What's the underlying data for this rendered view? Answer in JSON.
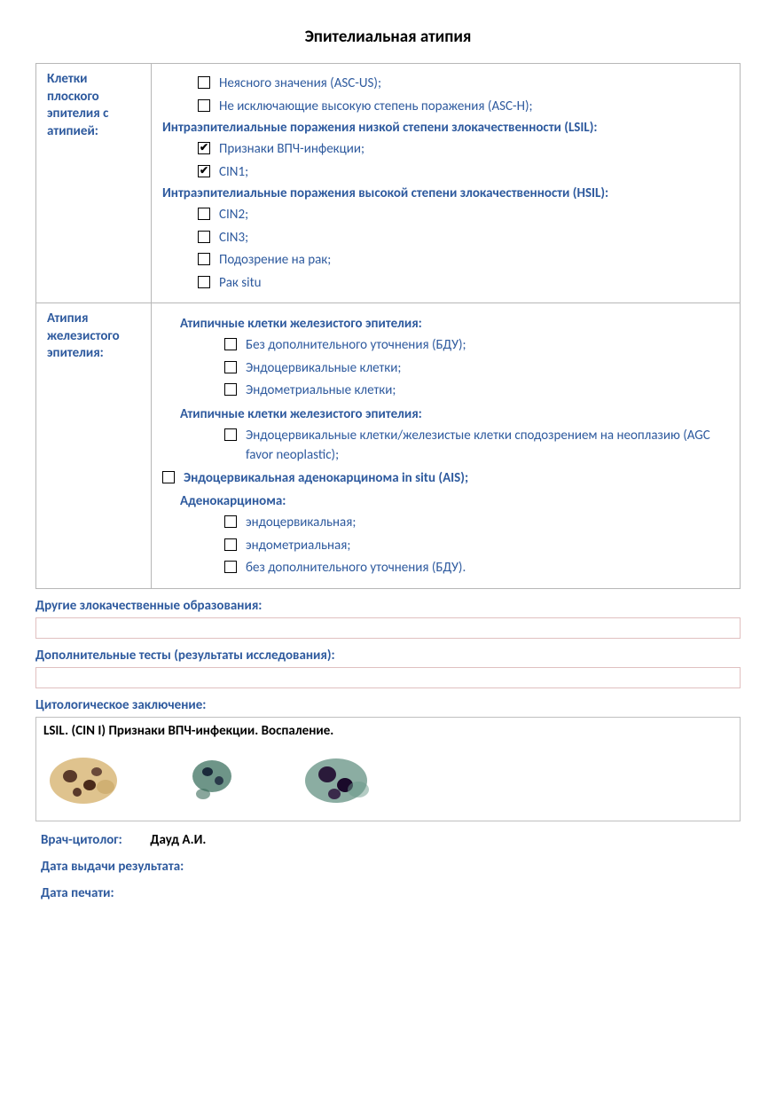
{
  "title": "Эпителиальная атипия",
  "section1": {
    "header": "Клетки плоского эпителия с атипией:",
    "items_top": [
      {
        "label": "Неясного значения (ASC-US);",
        "checked": false
      },
      {
        "label": "Не исключающие высокую степень поражения (ASC-H);",
        "checked": false
      }
    ],
    "lsil_header": "Интраэпителиальные поражения низкой степени злокачественности (LSIL):",
    "lsil_items": [
      {
        "label": "Признаки ВПЧ-инфекции;",
        "checked": true
      },
      {
        "label": "CIN1;",
        "checked": true
      }
    ],
    "hsil_header": "Интраэпителиальные поражения высокой степени злокачественности (HSIL):",
    "hsil_items": [
      {
        "label": "CIN2;",
        "checked": false
      },
      {
        "label": "CIN3;",
        "checked": false
      },
      {
        "label": "Подозрение на рак;",
        "checked": false
      },
      {
        "label": "Рак situ",
        "checked": false
      }
    ]
  },
  "section2": {
    "header": "Атипия железистого  эпителия:",
    "group1_header": "Атипичные клетки железистого эпителия:",
    "group1_items": [
      {
        "label": "Без дополнительного уточнения (БДУ);",
        "checked": false
      },
      {
        "label": "Эндоцервикальные клетки;",
        "checked": false
      },
      {
        "label": "Эндометриальные клетки;",
        "checked": false
      }
    ],
    "group2_header": "Атипичные клетки железистого эпителия:",
    "group2_items": [
      {
        "label": "Эндоцервикальные клетки/железистые клетки сподозрением на неоплазию (AGC favor neoplastic);",
        "checked": false
      }
    ],
    "ais": {
      "label": "Эндоцервикальная аденокарцинома in situ (AIS);",
      "checked": false
    },
    "adeno_header": "Аденокарцинома:",
    "adeno_items": [
      {
        "label": "эндоцервикальная;",
        "checked": false
      },
      {
        "label": "эндометриальная;",
        "checked": false
      },
      {
        "label": "без дополнительного уточнения (БДУ).",
        "checked": false
      }
    ]
  },
  "other_malig_label": "Другие злокачественные образования:",
  "other_malig_value": "",
  "add_tests_label": "Дополнительные тесты (результаты исследования):",
  "add_tests_value": "",
  "conclusion_label": "Цитологическое заключение:",
  "conclusion_text": "LSIL. (CIN I) Признаки ВПЧ-инфекции. Воспаление.",
  "cytologist_label": "Врач-цитолог:",
  "cytologist_name": "Дауд А.И.",
  "result_date_label": "Дата выдачи результата:",
  "result_date_value": "",
  "print_date_label": "Дата печати:",
  "print_date_value": "",
  "colors": {
    "heading_blue": "#2e5a9e",
    "border_grey": "#b7b7b7",
    "input_border": "#e0c0c0",
    "checkbox_border": "#000000"
  }
}
